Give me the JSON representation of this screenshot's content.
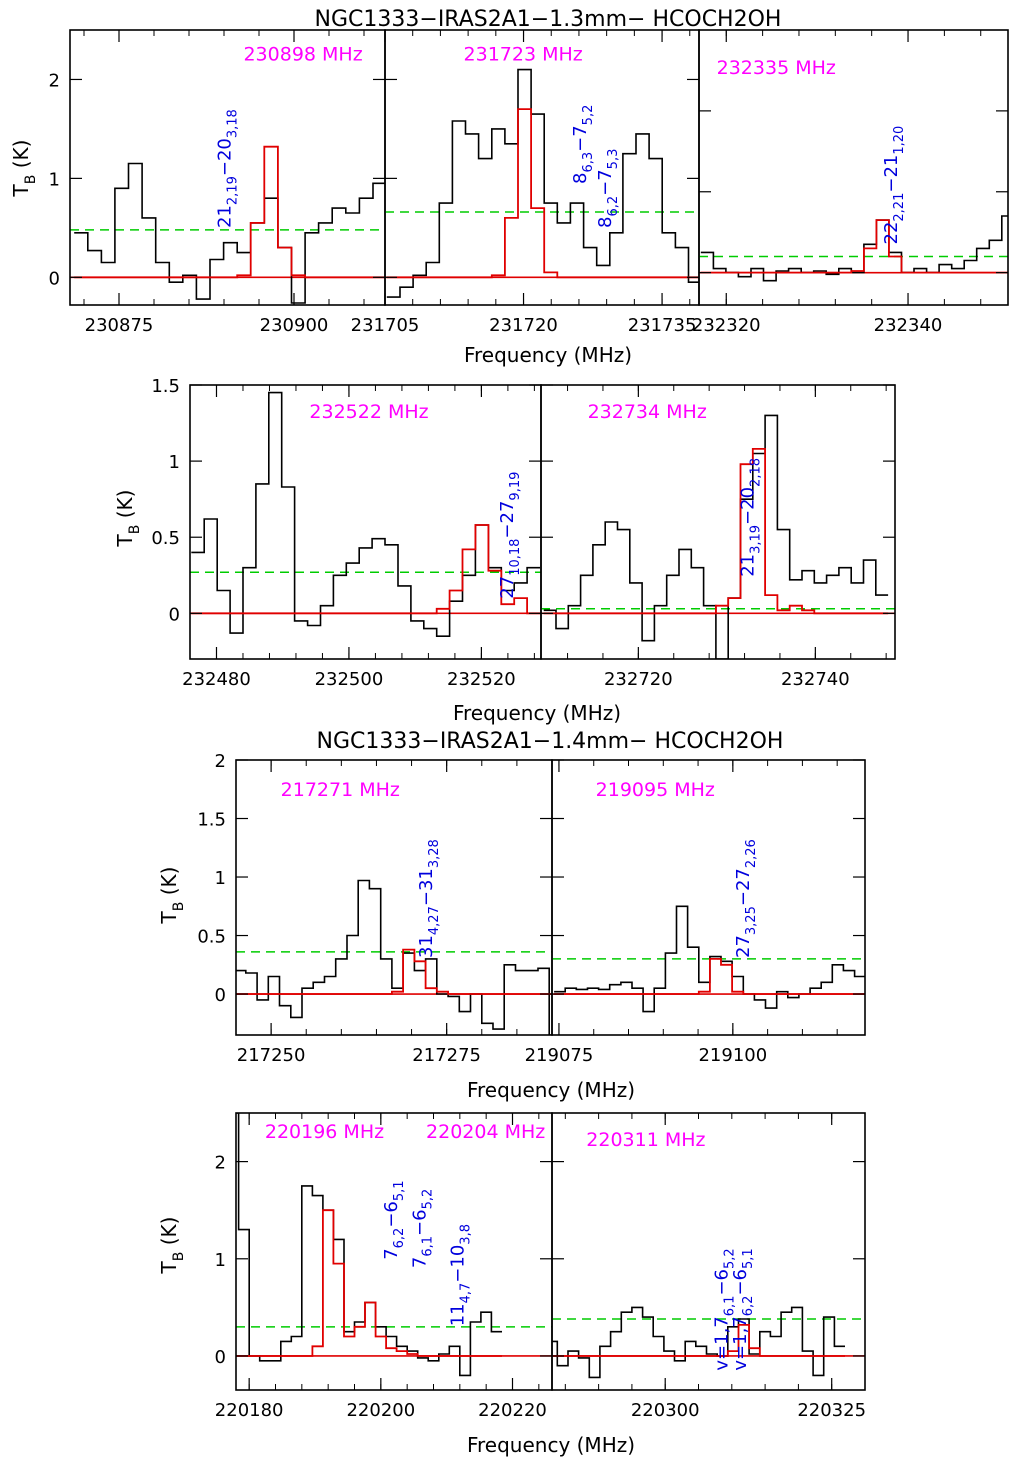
{
  "titles": {
    "top": "NGC1333−IRAS2A1−1.3mm− HCOCH2OH",
    "mid": "NGC1333−IRAS2A1−1.4mm− HCOCH2OH"
  },
  "axis": {
    "xlabel": "Frequency (MHz)",
    "ylabel_main": "T",
    "ylabel_sub": "B",
    "ylabel_unit": " (K)"
  },
  "colors": {
    "observed": "#000000",
    "model": "#e00000",
    "threshold": "#00cc00",
    "frequency_label": "#ff00ff",
    "transition_label": "#0000dd"
  },
  "chart_data": [
    {
      "type": "line",
      "id": "p230898",
      "freq_label": "230898 MHz",
      "transitions": [
        [
          [
            "21",
            ""
          ],
          [
            "2,19",
            "sub"
          ],
          [
            "−20",
            ""
          ],
          [
            "3,18",
            "sub"
          ]
        ]
      ],
      "xlim": [
        230868,
        230913
      ],
      "ylim": [
        -0.28,
        2.5
      ],
      "x_ticks": [
        230875,
        230900
      ],
      "y_ticks": [
        0,
        1,
        2
      ],
      "noise_level": 0.48,
      "observed": {
        "x0": 230868.6,
        "dx": 1.94,
        "y": [
          0.45,
          0.27,
          0.15,
          0.9,
          1.15,
          0.6,
          0.15,
          -0.05,
          0.02,
          -0.22,
          0.18,
          0.35,
          0.25,
          0.55,
          0.8,
          0.3,
          -0.26,
          0.45,
          0.55,
          0.7,
          0.65,
          0.8,
          0.95,
          0.4
        ]
      },
      "model": {
        "x0": 230868.6,
        "dx": 1.94,
        "y": [
          0,
          0,
          0,
          0,
          0,
          0,
          0,
          0,
          0,
          0,
          0,
          0,
          0.02,
          0.55,
          1.32,
          0.3,
          0.02,
          0,
          0,
          0,
          0,
          0,
          0,
          0
        ]
      }
    },
    {
      "type": "line",
      "id": "p231723",
      "freq_label": "231723 MHz",
      "transitions": [
        [
          [
            "8",
            ""
          ],
          [
            "6,3",
            "sub"
          ],
          [
            "−7",
            ""
          ],
          [
            "5,2",
            "sub"
          ]
        ],
        [
          [
            "8",
            ""
          ],
          [
            "6,2",
            "sub"
          ],
          [
            "−7",
            ""
          ],
          [
            "5,3",
            "sub"
          ]
        ]
      ],
      "xlim": [
        231705,
        231739
      ],
      "ylim": [
        -0.28,
        2.5
      ],
      "x_ticks": [
        231705,
        231720,
        231735
      ],
      "y_ticks": [
        0,
        1,
        2
      ],
      "noise_level": 0.66,
      "observed": {
        "x0": 231705.2,
        "dx": 1.42,
        "y": [
          -0.2,
          -0.1,
          0.02,
          0.15,
          0.75,
          1.58,
          1.45,
          1.2,
          1.5,
          1.35,
          2.1,
          1.65,
          0.75,
          0.55,
          0.75,
          0.3,
          0.12,
          0.45,
          1.25,
          1.45,
          1.2,
          0.45,
          0.3,
          -0.05
        ]
      },
      "model": {
        "x0": 231705.2,
        "dx": 1.42,
        "y": [
          0,
          0,
          0,
          0,
          0,
          0,
          0,
          0,
          0.02,
          0.6,
          1.7,
          0.7,
          0.05,
          0,
          0,
          0,
          0,
          0,
          0,
          0,
          0,
          0,
          0,
          0
        ]
      }
    },
    {
      "type": "line",
      "id": "p232335",
      "freq_label": "232335 MHz",
      "transitions": [
        [
          [
            "22",
            ""
          ],
          [
            "2,21",
            "sub"
          ],
          [
            "−21",
            ""
          ],
          [
            "1,20",
            "sub"
          ]
        ]
      ],
      "xlim": [
        232317,
        232351
      ],
      "ylim": [
        -0.4,
        3.0
      ],
      "x_ticks": [
        232320,
        232340
      ],
      "y_ticks": [],
      "noise_level": 0.2,
      "observed": {
        "x0": 232317.2,
        "dx": 1.38,
        "y": [
          0.25,
          0.05,
          0.0,
          -0.05,
          0.05,
          -0.1,
          0.02,
          0.05,
          0.0,
          0.02,
          -0.02,
          0.05,
          0.0,
          0.35,
          0.65,
          0.25,
          0.0,
          0.05,
          0.0,
          0.1,
          0.05,
          0.15,
          0.3,
          0.4,
          0.7,
          0.5
        ]
      },
      "model": {
        "x0": 232317.2,
        "dx": 1.38,
        "y": [
          0,
          0,
          0,
          0,
          0,
          0,
          0,
          0,
          0,
          0,
          0,
          0,
          0.02,
          0.3,
          0.65,
          0.2,
          0,
          0,
          0,
          0,
          0,
          0,
          0,
          0,
          0,
          0
        ]
      }
    },
    {
      "type": "line",
      "id": "p232522",
      "freq_label": "232522 MHz",
      "transitions": [
        [
          [
            "27",
            ""
          ],
          [
            "10,18",
            "sub"
          ],
          [
            "−27",
            ""
          ],
          [
            "9,19",
            "sub"
          ]
        ]
      ],
      "xlim": [
        232476,
        232529
      ],
      "ylim": [
        -0.3,
        1.5
      ],
      "x_ticks": [
        232480,
        232500,
        232520
      ],
      "y_ticks": [
        0,
        0.5,
        1,
        1.5
      ],
      "noise_level": 0.27,
      "observed": {
        "x0": 232476.2,
        "dx": 1.95,
        "y": [
          0.4,
          0.62,
          0.15,
          -0.13,
          0.3,
          0.85,
          1.45,
          0.83,
          -0.05,
          -0.08,
          0.05,
          0.25,
          0.33,
          0.43,
          0.49,
          0.45,
          0.18,
          -0.05,
          -0.1,
          -0.15,
          0.08,
          0.25,
          0.58,
          0.3,
          0.15,
          0.2,
          0.3
        ]
      },
      "model": {
        "x0": 232476.2,
        "dx": 1.95,
        "y": [
          0,
          0,
          0,
          0,
          0,
          0,
          0,
          0,
          0,
          0,
          0,
          0,
          0,
          0,
          0,
          0,
          0,
          0,
          0,
          0.03,
          0.15,
          0.42,
          0.58,
          0.28,
          0.06,
          0.1,
          0.0
        ]
      }
    },
    {
      "type": "line",
      "id": "p232734",
      "freq_label": "232734 MHz",
      "transitions": [
        [
          [
            "21",
            ""
          ],
          [
            "3,19",
            "sub"
          ],
          [
            "−20",
            ""
          ],
          [
            "2,18",
            "sub"
          ]
        ]
      ],
      "xlim": [
        232709,
        232749
      ],
      "ylim": [
        -0.3,
        1.5
      ],
      "x_ticks": [
        232720,
        232740
      ],
      "y_ticks": [],
      "noise_level": 0.03,
      "observed": {
        "x0": 232709.3,
        "dx": 1.39,
        "y": [
          0.02,
          -0.1,
          0.05,
          0.25,
          0.45,
          0.6,
          0.55,
          0.2,
          -0.18,
          0.05,
          0.25,
          0.42,
          0.3,
          0.05,
          -0.3,
          0.1,
          0.75,
          1.05,
          1.3,
          0.55,
          0.22,
          0.28,
          0.2,
          0.25,
          0.3,
          0.2,
          0.35,
          0.12
        ]
      },
      "model": {
        "x0": 232709.3,
        "dx": 1.39,
        "y": [
          0,
          0,
          0,
          0,
          0,
          0,
          0,
          0,
          0,
          0,
          0,
          0,
          0,
          0,
          0.05,
          0.1,
          0.98,
          1.08,
          0.12,
          0.02,
          0.05,
          0.02,
          0.0,
          0,
          0,
          0,
          0,
          0
        ]
      }
    },
    {
      "type": "line",
      "id": "p217271",
      "freq_label": "217271 MHz",
      "transitions": [
        [
          [
            "31",
            ""
          ],
          [
            "4,27",
            "sub"
          ],
          [
            "−31",
            ""
          ],
          [
            "3,28",
            "sub"
          ]
        ]
      ],
      "xlim": [
        217245,
        217290
      ],
      "ylim": [
        -0.35,
        2.0
      ],
      "x_ticks": [
        217250,
        217275
      ],
      "y_ticks": [
        0,
        0.5,
        1,
        1.5,
        2
      ],
      "noise_level": 0.36,
      "observed": {
        "x0": 217244.8,
        "dx": 1.6,
        "y": [
          0.2,
          0.18,
          -0.05,
          0.15,
          -0.1,
          -0.2,
          0.05,
          0.1,
          0.15,
          0.3,
          0.5,
          0.97,
          0.9,
          0.3,
          0.05,
          0.35,
          0.2,
          0.3,
          0.0,
          -0.02,
          -0.15,
          0.0,
          -0.25,
          -0.3,
          0.25,
          0.2,
          0.2,
          0.22,
          -0.35
        ]
      },
      "model": {
        "x0": 217244.8,
        "dx": 1.6,
        "y": [
          0,
          0,
          0,
          0,
          0,
          0,
          0,
          0,
          0,
          0,
          0,
          0,
          0,
          0,
          0.02,
          0.38,
          0.28,
          0.05,
          0.02,
          0,
          0,
          0,
          0,
          0,
          0,
          0,
          0,
          0,
          0
        ]
      }
    },
    {
      "type": "line",
      "id": "p219095",
      "freq_label": "219095 MHz",
      "transitions": [
        [
          [
            "27",
            ""
          ],
          [
            "3,25",
            "sub"
          ],
          [
            "−27",
            ""
          ],
          [
            "2,26",
            "sub"
          ]
        ]
      ],
      "xlim": [
        219074,
        219119
      ],
      "ylim": [
        -0.35,
        2.0
      ],
      "x_ticks": [
        219075,
        219100
      ],
      "y_ticks": [],
      "noise_level": 0.3,
      "observed": {
        "x0": 219074.3,
        "dx": 1.6,
        "y": [
          0.02,
          0.05,
          0.04,
          0.05,
          0.04,
          0.08,
          0.1,
          0.05,
          -0.15,
          0.05,
          0.35,
          0.75,
          0.4,
          0.1,
          0.32,
          0.28,
          0.15,
          0.0,
          -0.05,
          -0.12,
          0.02,
          -0.03,
          0.0,
          0.05,
          0.1,
          0.25,
          0.2,
          0.15,
          -0.05,
          0.0
        ]
      },
      "model": {
        "x0": 219074.3,
        "dx": 1.6,
        "y": [
          0,
          0,
          0,
          0,
          0,
          0,
          0,
          0,
          0,
          0,
          0,
          0,
          0,
          0.02,
          0.3,
          0.25,
          0.02,
          0,
          0,
          0,
          0,
          0,
          0,
          0,
          0,
          0,
          0,
          0,
          0,
          0
        ]
      }
    },
    {
      "type": "line",
      "id": "p220196",
      "freq_labels": [
        "220196 MHz",
        "220204 MHz"
      ],
      "transitions": [
        [
          [
            "7",
            ""
          ],
          [
            "6,2",
            "sub"
          ],
          [
            "−6",
            ""
          ],
          [
            "5,1",
            "sub"
          ]
        ],
        [
          [
            "7",
            ""
          ],
          [
            "6,1",
            "sub"
          ],
          [
            "−6",
            ""
          ],
          [
            "5,2",
            "sub"
          ]
        ],
        [
          [
            "11",
            ""
          ],
          [
            "4,7",
            "sub"
          ],
          [
            "−10",
            ""
          ],
          [
            "3,8",
            "sub"
          ]
        ]
      ],
      "xlim": [
        220178,
        220226
      ],
      "ylim": [
        -0.35,
        2.5
      ],
      "x_ticks": [
        220180,
        220200,
        220220
      ],
      "y_ticks": [
        0,
        1,
        2
      ],
      "noise_level": 0.3,
      "observed": {
        "x0": 220176.8,
        "dx": 1.6,
        "y": [
          2.5,
          1.3,
          0.0,
          -0.05,
          -0.05,
          0.15,
          0.2,
          1.75,
          1.65,
          1.5,
          1.2,
          0.25,
          0.35,
          0.55,
          0.3,
          0.2,
          0.1,
          0.05,
          -0.02,
          -0.05,
          0.02,
          0.1,
          -0.2,
          0.35,
          0.45,
          0.25
        ]
      },
      "model": {
        "x0": 220176.8,
        "dx": 1.6,
        "y": [
          0,
          0,
          0,
          0,
          0,
          0,
          0,
          0,
          0.1,
          1.5,
          0.95,
          0.2,
          0.3,
          0.55,
          0.2,
          0.08,
          0.05,
          0.02,
          0,
          0,
          0,
          0,
          0,
          0,
          0,
          0
        ]
      }
    },
    {
      "type": "line",
      "id": "p220311",
      "freq_label": "220311 MHz",
      "transitions": [
        [
          [
            "v=1,7",
            ""
          ],
          [
            "6,1",
            "sub"
          ],
          [
            "−6",
            ""
          ],
          [
            "5,2",
            "sub"
          ]
        ],
        [
          [
            "v=1,7",
            ""
          ],
          [
            "6,2",
            "sub"
          ],
          [
            "−6",
            ""
          ],
          [
            "5,1",
            "sub"
          ]
        ]
      ],
      "xlim": [
        220283,
        220330
      ],
      "ylim": [
        -0.35,
        2.5
      ],
      "x_ticks": [
        220300,
        220325
      ],
      "y_ticks": [],
      "noise_level": 0.38,
      "observed": {
        "x0": 220282.2,
        "dx": 1.6,
        "y": [
          0.15,
          -0.1,
          0.05,
          -0.02,
          -0.22,
          0.1,
          0.25,
          0.45,
          0.5,
          0.4,
          0.2,
          0.05,
          -0.05,
          0.15,
          0.1,
          0.02,
          0.0,
          0.3,
          0.38,
          0.02,
          0.25,
          0.2,
          0.45,
          0.5,
          0.05,
          -0.2,
          0.4,
          0.1
        ]
      },
      "model": {
        "x0": 220282.2,
        "dx": 1.6,
        "y": [
          0,
          0,
          0,
          0,
          0,
          0,
          0,
          0,
          0,
          0,
          0,
          0,
          0,
          0,
          0,
          0,
          0,
          0.05,
          0.32,
          0.08,
          0,
          0,
          0,
          0,
          0,
          0,
          0,
          0
        ]
      }
    }
  ]
}
